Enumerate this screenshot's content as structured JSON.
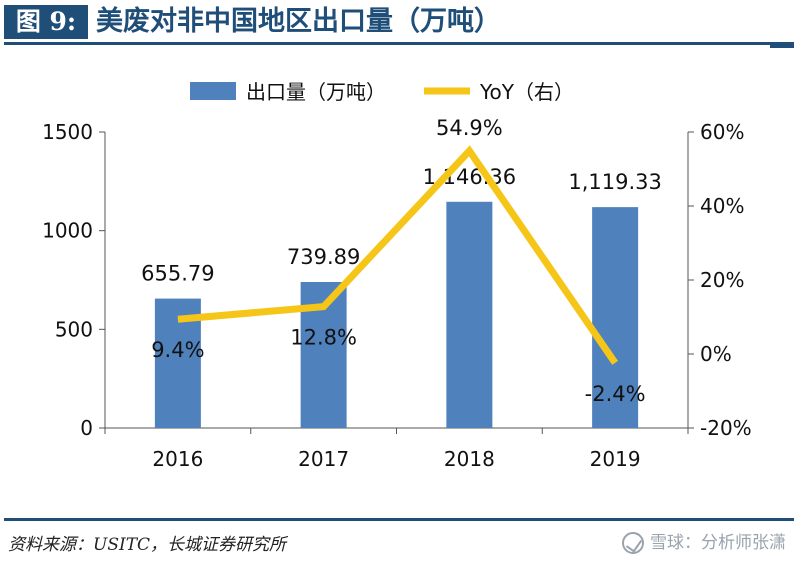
{
  "header": {
    "figure_label": "图 9:",
    "title": "美废对非中国地区出口量（万吨）"
  },
  "footer": {
    "source": "资料来源：USITC，长城证券研究所",
    "watermark": "雪球：分析师张潇"
  },
  "colors": {
    "bar": "#4f81bd",
    "line": "#f5c518",
    "rule": "#1f4e79"
  },
  "chart_data": {
    "type": "bar",
    "categories": [
      "2016",
      "2017",
      "2018",
      "2019"
    ],
    "series": [
      {
        "name": "出口量（万吨）",
        "type": "bar",
        "axis": "left",
        "values": [
          655.79,
          739.89,
          1146.36,
          1119.33
        ],
        "labels": [
          "655.79",
          "739.89",
          "1,146.36",
          "1,119.33"
        ]
      },
      {
        "name": "YoY（右）",
        "type": "line",
        "axis": "right",
        "values": [
          9.4,
          12.8,
          54.9,
          -2.4
        ],
        "labels": [
          "9.4%",
          "12.8%",
          "54.9%",
          "-2.4%"
        ]
      }
    ],
    "y_left": {
      "ylim": [
        0,
        1500
      ],
      "ticks": [
        0,
        500,
        1000,
        1500
      ],
      "tick_labels": [
        "0",
        "500",
        "1000",
        "1500"
      ]
    },
    "y_right": {
      "ylim": [
        -20,
        60
      ],
      "ticks": [
        -20,
        0,
        20,
        40,
        60
      ],
      "tick_labels": [
        "-20%",
        "0%",
        "20%",
        "40%",
        "60%"
      ]
    },
    "legend_position": "top-center",
    "grid": false
  }
}
